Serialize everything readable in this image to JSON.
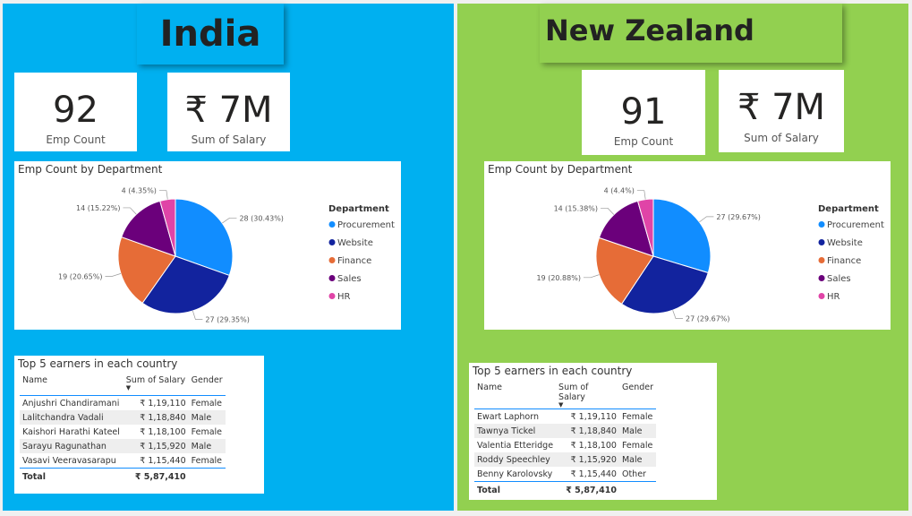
{
  "colors": {
    "india_bg": "#00b0f0",
    "nz_bg": "#92d050",
    "procurement": "#118dff",
    "website": "#12239e",
    "finance": "#e66c37",
    "sales": "#6b007b",
    "hr": "#e044a7"
  },
  "india": {
    "title": "India",
    "emp_count": {
      "value": "92",
      "label": "Emp Count"
    },
    "salary": {
      "value": "₹ 7M",
      "label": "Sum of Salary"
    },
    "pie_title": "Emp Count by Department",
    "legend_title": "Department",
    "chart_data": {
      "type": "pie",
      "title": "Emp Count by Department",
      "legend_title": "Department",
      "legend_position": "right",
      "categories": [
        "Procurement",
        "Website",
        "Finance",
        "Sales",
        "HR"
      ],
      "values": [
        28,
        27,
        19,
        14,
        4
      ],
      "data_labels": [
        "28 (30.43%)",
        "27 (29.35%)",
        "19 (20.65%)",
        "14 (15.22%)",
        "4 (4.35%)"
      ]
    },
    "table": {
      "title": "Top 5 earners in each country",
      "headers": [
        "Name",
        "Sum of Salary",
        "Gender"
      ],
      "rows": [
        [
          "Anjushri Chandiramani",
          "₹ 1,19,110",
          "Female"
        ],
        [
          "Lalitchandra Vadali",
          "₹ 1,18,840",
          "Male"
        ],
        [
          "Kaishori Harathi Kateel",
          "₹ 1,18,100",
          "Female"
        ],
        [
          "Sarayu Ragunathan",
          "₹ 1,15,920",
          "Male"
        ],
        [
          "Vasavi Veeravasarapu",
          "₹ 1,15,440",
          "Female"
        ]
      ],
      "total_label": "Total",
      "total_value": "₹ 5,87,410"
    }
  },
  "nz": {
    "title": "New Zealand",
    "emp_count": {
      "value": "91",
      "label": "Emp Count"
    },
    "salary": {
      "value": "₹ 7M",
      "label": "Sum of Salary"
    },
    "pie_title": "Emp Count by Department",
    "legend_title": "Department",
    "chart_data": {
      "type": "pie",
      "title": "Emp Count by Department",
      "legend_title": "Department",
      "legend_position": "right",
      "categories": [
        "Procurement",
        "Website",
        "Finance",
        "Sales",
        "HR"
      ],
      "values": [
        27,
        27,
        19,
        14,
        4
      ],
      "data_labels": [
        "27 (29.67%)",
        "27 (29.67%)",
        "19 (20.88%)",
        "14 (15.38%)",
        "4 (4.4%)"
      ]
    },
    "table": {
      "title": "Top 5 earners in each country",
      "headers": [
        "Name",
        "Sum of Salary",
        "Gender"
      ],
      "rows": [
        [
          "Ewart Laphorn",
          "₹ 1,19,110",
          "Female"
        ],
        [
          "Tawnya Tickel",
          "₹ 1,18,840",
          "Male"
        ],
        [
          "Valentia Etteridge",
          "₹ 1,18,100",
          "Female"
        ],
        [
          "Roddy Speechley",
          "₹ 1,15,920",
          "Male"
        ],
        [
          "Benny Karolovsky",
          "₹ 1,15,440",
          "Other"
        ]
      ],
      "total_label": "Total",
      "total_value": "₹ 5,87,410"
    }
  }
}
